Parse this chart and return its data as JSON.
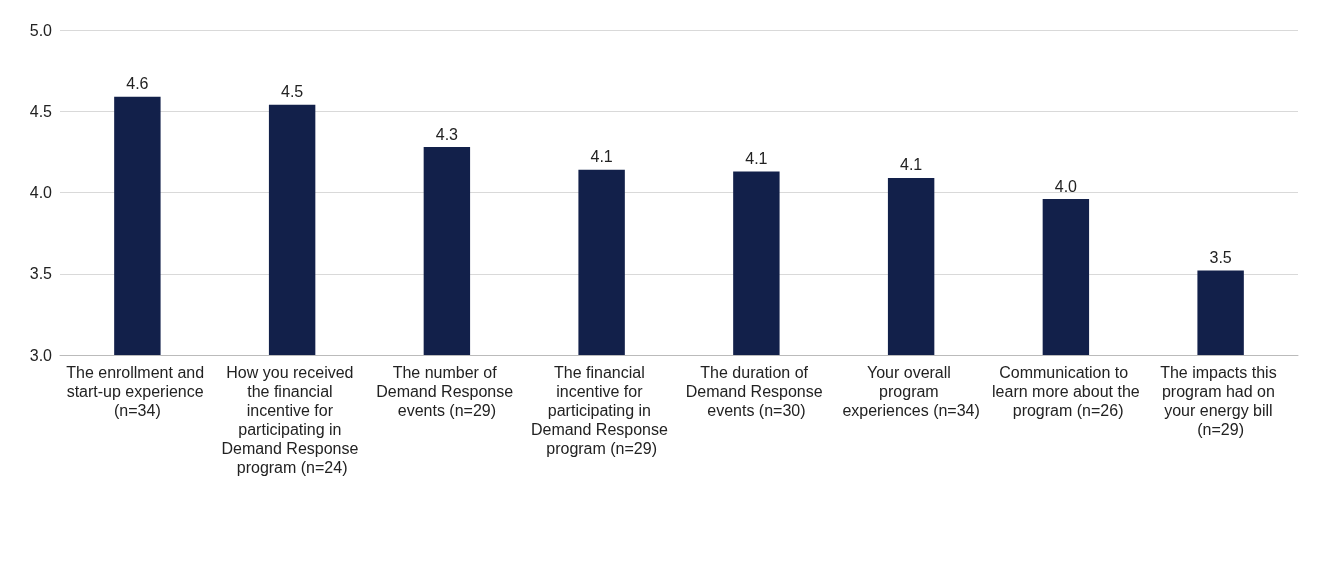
{
  "chart_data": {
    "type": "bar",
    "categories": [
      "The enrollment and start-up experience (n=34)",
      "How you received the financial incentive for participating in Demand Response program (n=24)",
      "The number of Demand Response events (n=29)",
      "The financial incentive for participating in Demand Response program (n=29)",
      "The duration of Demand Response events (n=30)",
      "Your overall program experiences (n=34)",
      "Communication to learn more about the program (n=26)",
      "The impacts this program had on your energy bill (n=29)"
    ],
    "values": [
      4.59,
      4.54,
      4.28,
      4.14,
      4.13,
      4.09,
      3.96,
      3.52
    ],
    "value_labels": [
      "4.6",
      "4.5",
      "4.3",
      "4.1",
      "4.1",
      "4.1",
      "4.0",
      "3.5"
    ],
    "color": "#12204a",
    "ylim": [
      3.0,
      5.0
    ],
    "yticks": [
      {
        "value": 3.0,
        "label": "3.0"
      },
      {
        "value": 3.5,
        "label": "3.5"
      },
      {
        "value": 4.0,
        "label": "4.0"
      },
      {
        "value": 4.5,
        "label": "4.5"
      },
      {
        "value": 5.0,
        "label": "5.0"
      }
    ],
    "grid": "y"
  }
}
